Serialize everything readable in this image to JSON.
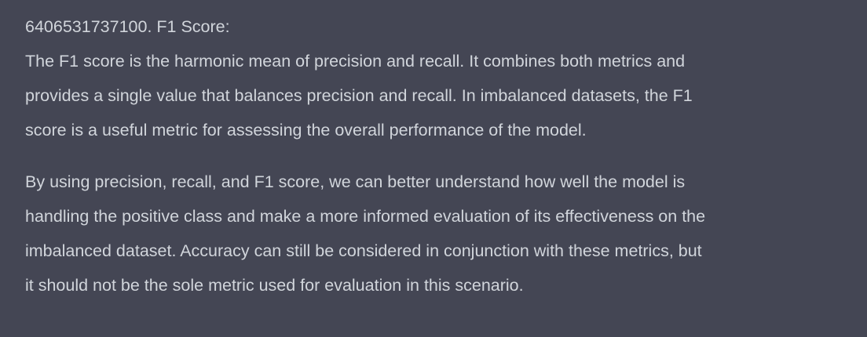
{
  "message": {
    "heading": "6406531737100. F1 Score:",
    "paragraph1": [
      "The F1 score is the harmonic mean of precision and recall. It combines both metrics and",
      "provides a single value that balances precision and recall. In imbalanced datasets, the F1",
      "score is a useful metric for assessing the overall performance of the model."
    ],
    "paragraph2": [
      "By using precision, recall, and F1 score, we can better understand how well the model is",
      "handling the positive class and make a more informed evaluation of its effectiveness on the",
      "imbalanced dataset. Accuracy can still be considered in conjunction with these metrics, but",
      "it should not be the sole metric used for evaluation in this scenario."
    ]
  }
}
